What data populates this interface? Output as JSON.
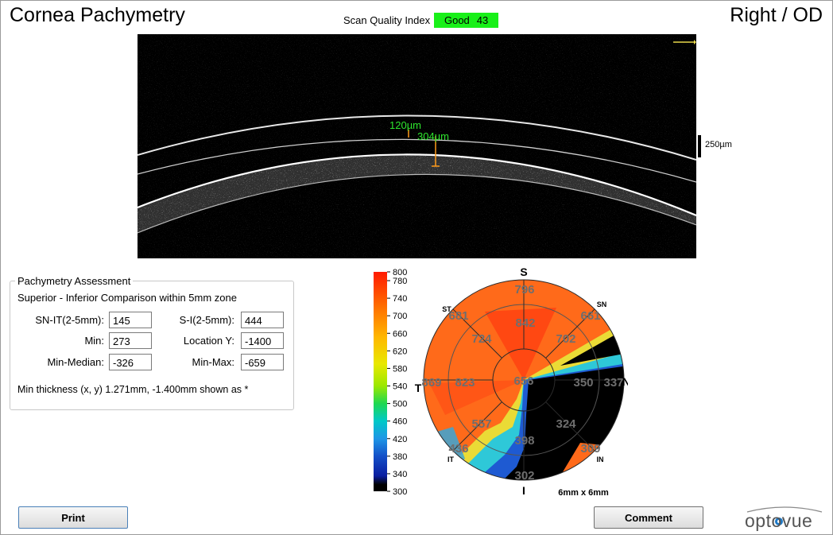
{
  "header": {
    "title": "Cornea Pachymetry",
    "eye": "Right / OD",
    "sqi_label": "Scan Quality Index",
    "sqi_quality": "Good",
    "sqi_value": "43"
  },
  "scan": {
    "epi_label": "120µm",
    "thick_label": "304µm",
    "scale_label": "250µm"
  },
  "assessment": {
    "legend": "Pachymetry Assessment",
    "subtitle": "Superior - Inferior Comparison within 5mm zone",
    "fields": {
      "sn_it": {
        "label": "SN-IT(2-5mm):",
        "value": "145"
      },
      "s_i": {
        "label": "S-I(2-5mm):",
        "value": "444"
      },
      "min": {
        "label": "Min:",
        "value": "273"
      },
      "location_y": {
        "label": "Location Y:",
        "value": "-1400"
      },
      "min_median": {
        "label": "Min-Median:",
        "value": "-326"
      },
      "min_max": {
        "label": "Min-Max:",
        "value": "-659"
      }
    },
    "note": "Min thickness (x, y) 1.271mm, -1.400mm shown as *"
  },
  "colorbar": {
    "ticks": [
      "800",
      "780",
      "740",
      "700",
      "660",
      "620",
      "580",
      "540",
      "500",
      "460",
      "420",
      "380",
      "340",
      "300"
    ]
  },
  "map": {
    "dir_S": "S",
    "dir_I": "I",
    "dir_T": "T",
    "dir_N": "N",
    "dir_ST": "ST",
    "dir_SN": "SN",
    "dir_IT": "IT",
    "dir_IN": "IN",
    "center": "656",
    "inner": {
      "S": "842",
      "SN": "702",
      "N": "350",
      "IN": "324",
      "I": "398",
      "IT": "557",
      "T": "823",
      "ST": "724"
    },
    "outer": {
      "S": "796",
      "SN": "661",
      "N": "337",
      "IN": "309",
      "I": "302",
      "IT": "436",
      "T": "869",
      "ST": "681"
    },
    "size_label": "6mm x 6mm"
  },
  "buttons": {
    "print": "Print",
    "comment": "Comment"
  },
  "logo": {
    "text": "optovue"
  }
}
